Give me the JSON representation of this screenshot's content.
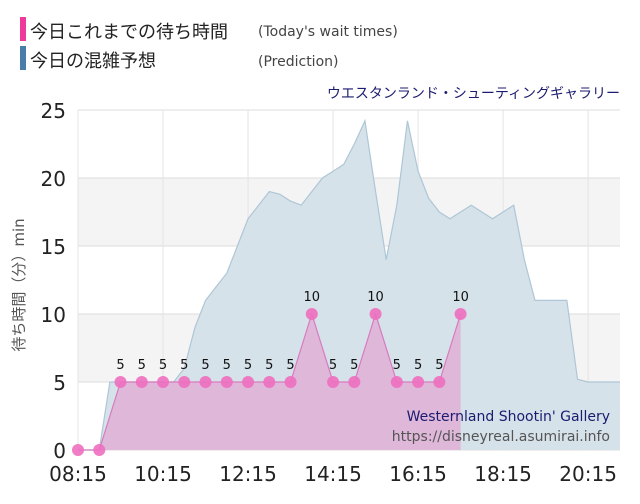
{
  "legend": {
    "items": [
      {
        "label": "今日これまでの待ち時間",
        "sublabel": "(Today's wait times)",
        "color": "#ee3b9a"
      },
      {
        "label": "今日の混雑予想",
        "sublabel": "(Prediction)",
        "color": "#4a7ea8"
      }
    ]
  },
  "attraction_name_ja": "ウエスタンランド・シューティングギャラリー",
  "watermark": {
    "name_en": "Westernland Shootin' Gallery",
    "url": "https://disneyreal.asumirai.info"
  },
  "chart_data": {
    "type": "area",
    "ylabel": "待ち時間（分）min",
    "ylim": [
      0,
      25
    ],
    "yticks": [
      0,
      5,
      10,
      15,
      20,
      25
    ],
    "xlim": [
      "08:15",
      "21:00"
    ],
    "xticks": [
      "08:15",
      "10:15",
      "12:15",
      "14:15",
      "16:15",
      "18:15",
      "20:15"
    ],
    "grid": true,
    "series": [
      {
        "name": "今日の混雑予想",
        "color": "#bfd0dc",
        "points": [
          [
            "08:15",
            0
          ],
          [
            "08:45",
            0
          ],
          [
            "09:00",
            5
          ],
          [
            "10:00",
            5
          ],
          [
            "10:30",
            5
          ],
          [
            "10:45",
            6
          ],
          [
            "11:00",
            9
          ],
          [
            "11:15",
            11
          ],
          [
            "11:30",
            12
          ],
          [
            "11:45",
            13
          ],
          [
            "12:00",
            15
          ],
          [
            "12:15",
            17
          ],
          [
            "12:30",
            18
          ],
          [
            "12:45",
            19
          ],
          [
            "13:00",
            18.8
          ],
          [
            "13:15",
            18.3
          ],
          [
            "13:30",
            18
          ],
          [
            "13:45",
            19
          ],
          [
            "14:00",
            20
          ],
          [
            "14:15",
            20.5
          ],
          [
            "14:30",
            21
          ],
          [
            "14:45",
            22.5
          ],
          [
            "15:00",
            24.2
          ],
          [
            "15:15",
            19
          ],
          [
            "15:30",
            14
          ],
          [
            "15:45",
            18
          ],
          [
            "16:00",
            24.2
          ],
          [
            "16:15",
            20.5
          ],
          [
            "16:30",
            18.5
          ],
          [
            "16:45",
            17.5
          ],
          [
            "17:00",
            17
          ],
          [
            "17:15",
            17.5
          ],
          [
            "17:30",
            18
          ],
          [
            "17:45",
            17.5
          ],
          [
            "18:00",
            17
          ],
          [
            "18:15",
            17.5
          ],
          [
            "18:30",
            18
          ],
          [
            "18:45",
            14
          ],
          [
            "19:00",
            11
          ],
          [
            "19:15",
            11
          ],
          [
            "19:30",
            11
          ],
          [
            "19:45",
            11
          ],
          [
            "20:00",
            5.2
          ],
          [
            "20:15",
            5
          ],
          [
            "20:30",
            5
          ],
          [
            "21:00",
            5
          ]
        ]
      },
      {
        "name": "今日これまでの待ち時間",
        "color": "#ee3b9a",
        "points": [
          [
            "08:15",
            0
          ],
          [
            "08:45",
            0
          ],
          [
            "09:15",
            5
          ],
          [
            "09:45",
            5
          ],
          [
            "10:15",
            5
          ],
          [
            "10:45",
            5
          ],
          [
            "11:15",
            5
          ],
          [
            "11:45",
            5
          ],
          [
            "12:15",
            5
          ],
          [
            "12:45",
            5
          ],
          [
            "13:15",
            5
          ],
          [
            "13:45",
            10
          ],
          [
            "14:15",
            5
          ],
          [
            "14:45",
            5
          ],
          [
            "15:15",
            10
          ],
          [
            "15:45",
            5
          ],
          [
            "16:15",
            5
          ],
          [
            "16:45",
            5
          ],
          [
            "17:15",
            10
          ]
        ],
        "labels": [
          null,
          null,
          "5",
          "5",
          "5",
          "5",
          "5",
          "5",
          "5",
          "5",
          "5",
          "10",
          "5",
          "5",
          "10",
          "5",
          "5",
          "5",
          "10"
        ]
      }
    ]
  }
}
